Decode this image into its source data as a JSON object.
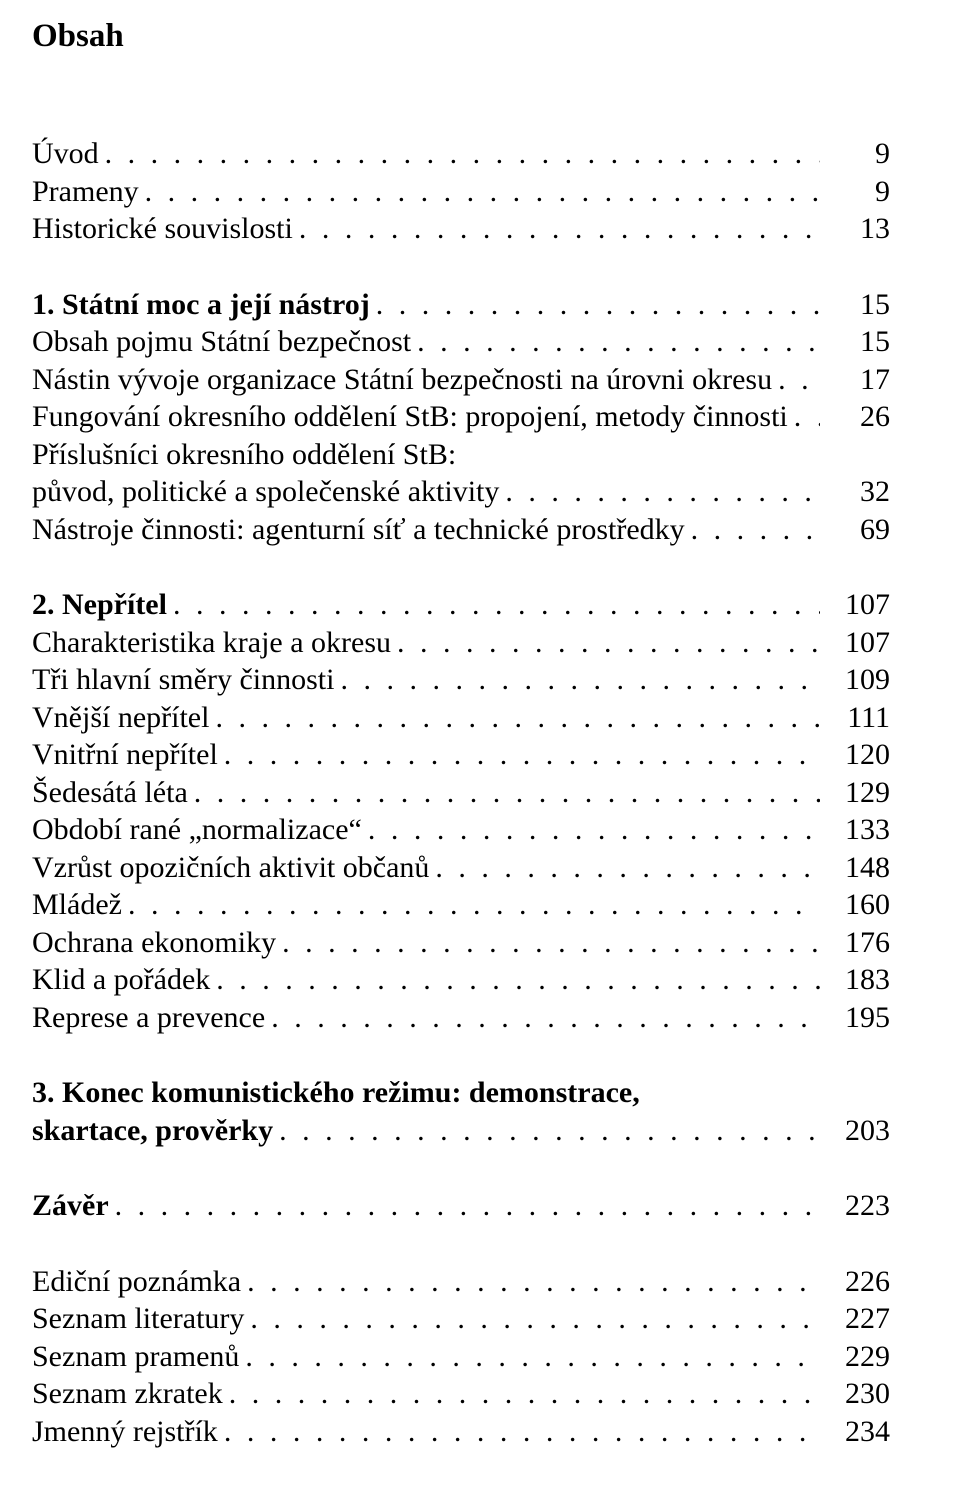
{
  "title": "Obsah",
  "font": {
    "family": "Times New Roman",
    "title_size_pt": 33,
    "body_size_pt": 30
  },
  "colors": {
    "text": "#000000",
    "background": "#ffffff"
  },
  "entries": [
    {
      "label": "Úvod",
      "page": "9",
      "bold": false
    },
    {
      "label": "Prameny",
      "page": "9",
      "bold": false
    },
    {
      "label": "Historické souvislosti",
      "page": "13",
      "bold": false
    },
    {
      "gap": "lg"
    },
    {
      "label": "1. Státní moc a její nástroj",
      "page": "15",
      "bold": true
    },
    {
      "label": "Obsah pojmu Státní bezpečnost",
      "page": "15",
      "bold": false
    },
    {
      "label": "Nástin vývoje organizace Státní bezpečnosti na úrovni okresu",
      "page": "17",
      "bold": false
    },
    {
      "label": "Fungování okresního oddělení StB: propojení, metody činnosti",
      "page": "26",
      "bold": false
    },
    {
      "text_only": "Příslušníci okresního oddělení StB:",
      "bold": false
    },
    {
      "label": "původ, politické a společenské aktivity",
      "page": "32",
      "bold": false
    },
    {
      "label": "Nástroje činnosti: agenturní síť a technické prostředky",
      "page": "69",
      "bold": false
    },
    {
      "gap": "lg"
    },
    {
      "label": "2. Nepřítel",
      "page": "107",
      "bold": true
    },
    {
      "label": "Charakteristika kraje a okresu",
      "page": "107",
      "bold": false
    },
    {
      "label": "Tři hlavní směry činnosti",
      "page": "109",
      "bold": false
    },
    {
      "label": "Vnější nepřítel",
      "page": "111",
      "bold": false
    },
    {
      "label": "Vnitřní nepřítel",
      "page": "120",
      "bold": false
    },
    {
      "label": "Šedesátá léta",
      "page": "129",
      "bold": false
    },
    {
      "label": "Období rané „normalizace“",
      "page": "133",
      "bold": false
    },
    {
      "label": "Vzrůst opozičních aktivit občanů",
      "page": "148",
      "bold": false
    },
    {
      "label": "Mládež",
      "page": "160",
      "bold": false
    },
    {
      "label": "Ochrana ekonomiky",
      "page": "176",
      "bold": false
    },
    {
      "label": "Klid a pořádek",
      "page": "183",
      "bold": false
    },
    {
      "label": "Represe a prevence",
      "page": "195",
      "bold": false
    },
    {
      "gap": "lg"
    },
    {
      "text_only": "3. Konec komunistického režimu: demonstrace,",
      "bold": true
    },
    {
      "label": "skartace, prověrky",
      "page": "203",
      "bold": true
    },
    {
      "gap": "lg"
    },
    {
      "label": "Závěr",
      "page": "223",
      "bold": true
    },
    {
      "gap": "lg"
    },
    {
      "label": "Ediční poznámka",
      "page": "226",
      "bold": false
    },
    {
      "label": "Seznam literatury",
      "page": "227",
      "bold": false
    },
    {
      "label": "Seznam pramenů",
      "page": "229",
      "bold": false
    },
    {
      "label": "Seznam zkratek",
      "page": "230",
      "bold": false
    },
    {
      "label": "Jmenný rejstřík",
      "page": "234",
      "bold": false
    }
  ]
}
